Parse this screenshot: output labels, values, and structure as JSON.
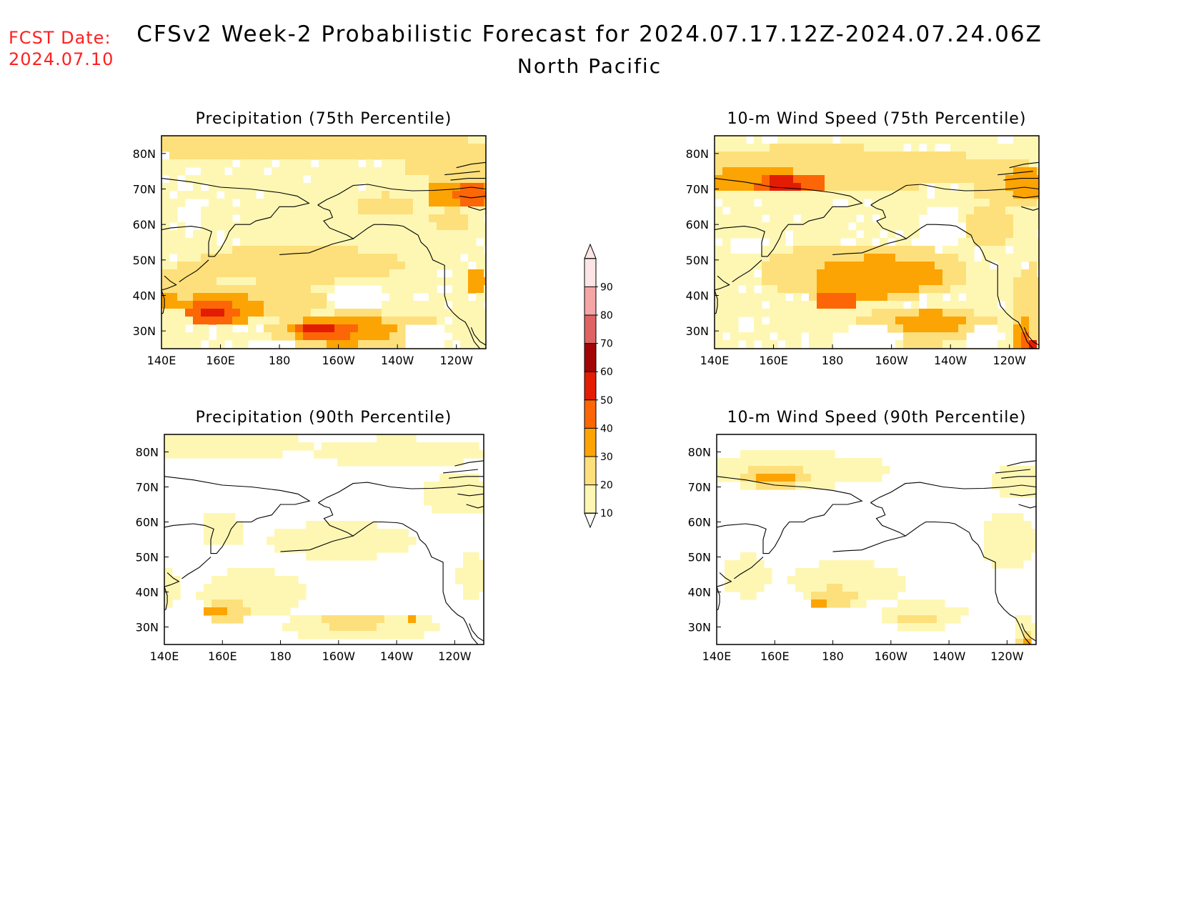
{
  "fcst_date": {
    "label": "FCST Date:",
    "value": "2024.07.10"
  },
  "title": "CFSv2 Week-2 Probabilistic Forecast for 2024.07.17.12Z-2024.07.24.06Z",
  "subtitle": "North Pacific",
  "colorbar": {
    "levels": [
      "10",
      "20",
      "30",
      "40",
      "50",
      "60",
      "70",
      "80",
      "90"
    ],
    "colors": [
      "#fef7b4",
      "#fde07c",
      "#fca404",
      "#fd6606",
      "#e31c04",
      "#a30505",
      "#df6363",
      "#f5a5a5",
      "#fde5e5"
    ]
  },
  "map_axes": {
    "lon_ticks": [
      "140E",
      "160E",
      "180",
      "160W",
      "140W",
      "120W"
    ],
    "lat_ticks": [
      "80N",
      "70N",
      "60N",
      "50N",
      "40N",
      "30N"
    ]
  },
  "panels": [
    {
      "id": "precip75",
      "title": "Precipitation (75th Percentile)"
    },
    {
      "id": "wind75",
      "title": "10-m Wind Speed (75th Percentile)"
    },
    {
      "id": "precip90",
      "title": "Precipitation (90th Percentile)"
    },
    {
      "id": "wind90",
      "title": "10-m Wind Speed (90th Percentile)"
    }
  ]
}
